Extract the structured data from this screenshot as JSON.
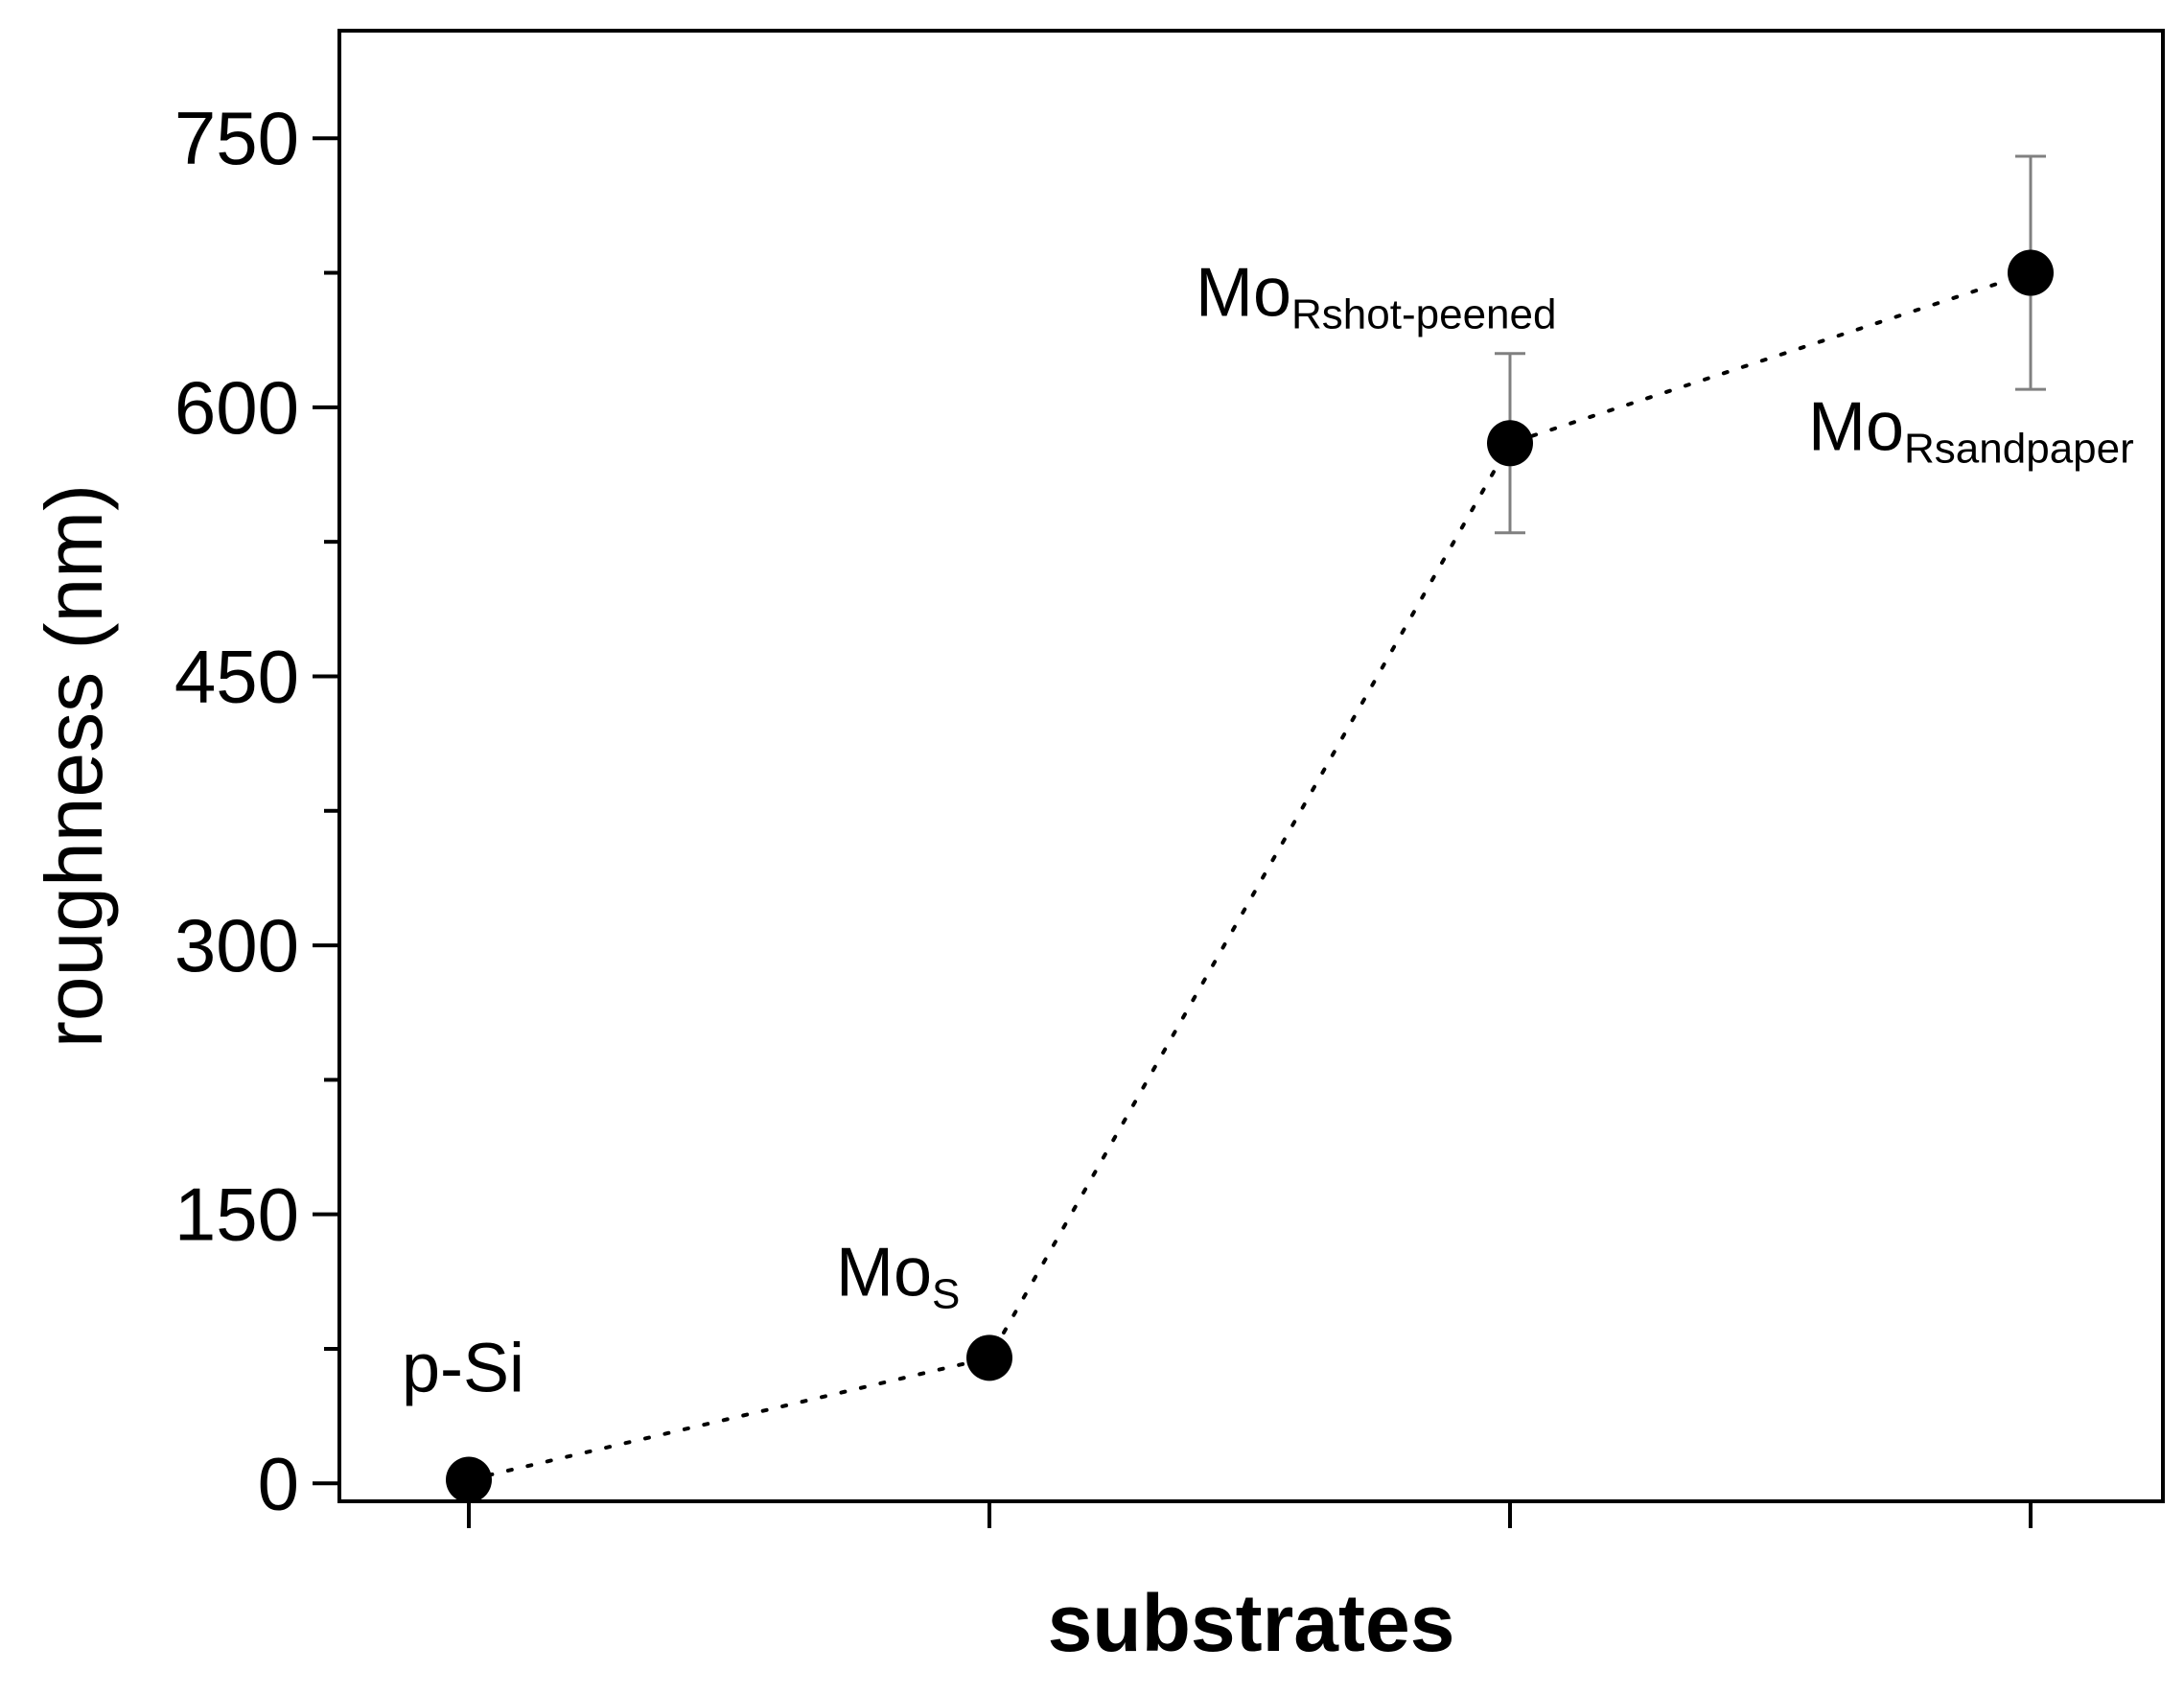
{
  "chart_data": {
    "type": "scatter",
    "title": "",
    "xlabel": "substrates",
    "ylabel": "roughness (nm)",
    "ylim": [
      -10,
      810
    ],
    "yticks": [
      0,
      150,
      300,
      450,
      600,
      750
    ],
    "grid": false,
    "legend": "none",
    "line_style": "dotted",
    "marker_color": "#000000",
    "errorbar_color": "#808080",
    "points": [
      {
        "category": "p-Si",
        "y": 2,
        "err_low": 0,
        "err_high": 0,
        "label_main": "p-Si",
        "label_sub": ""
      },
      {
        "category": "MoS",
        "y": 70,
        "err_low": 0,
        "err_high": 0,
        "label_main": "Mo",
        "label_sub": "S"
      },
      {
        "category": "MoRshot-peened",
        "y": 580,
        "err_low": 530,
        "err_high": 630,
        "label_main": "Mo",
        "label_sub": "Rshot-peened"
      },
      {
        "category": "MoRsandpaper",
        "y": 675,
        "err_low": 610,
        "err_high": 740,
        "label_main": "Mo",
        "label_sub": "Rsandpaper"
      }
    ]
  }
}
